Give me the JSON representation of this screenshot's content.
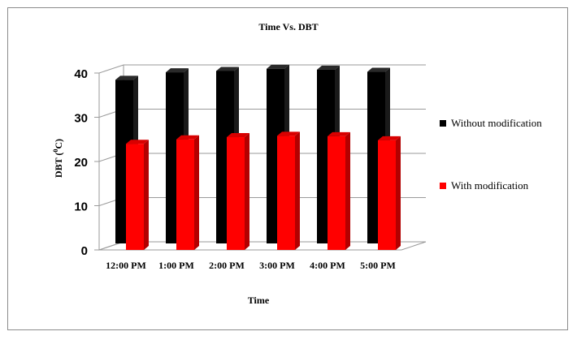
{
  "chart_data": {
    "type": "bar",
    "title": "Time Vs. DBT",
    "xlabel": "Time",
    "ylabel": "DBT (°C)",
    "ylabel_main": "DBT (",
    "ylabel_sup": "0",
    "ylabel_unit": "C)",
    "categories": [
      "12:00 PM",
      "1:00 PM",
      "2:00 PM",
      "3:00 PM",
      "4:00 PM",
      "5:00 PM"
    ],
    "yticks": [
      "0",
      "10",
      "20",
      "30",
      "40"
    ],
    "ylim": [
      0,
      40
    ],
    "grid": true,
    "legend_position": "right",
    "series": [
      {
        "name": "Without modification",
        "color": "#000000",
        "values": [
          37.0,
          38.7,
          39.0,
          39.5,
          39.3,
          38.8
        ]
      },
      {
        "name": "With modification",
        "color": "#ff0000",
        "values": [
          24.0,
          25.0,
          25.5,
          25.8,
          25.7,
          24.8
        ]
      }
    ]
  }
}
